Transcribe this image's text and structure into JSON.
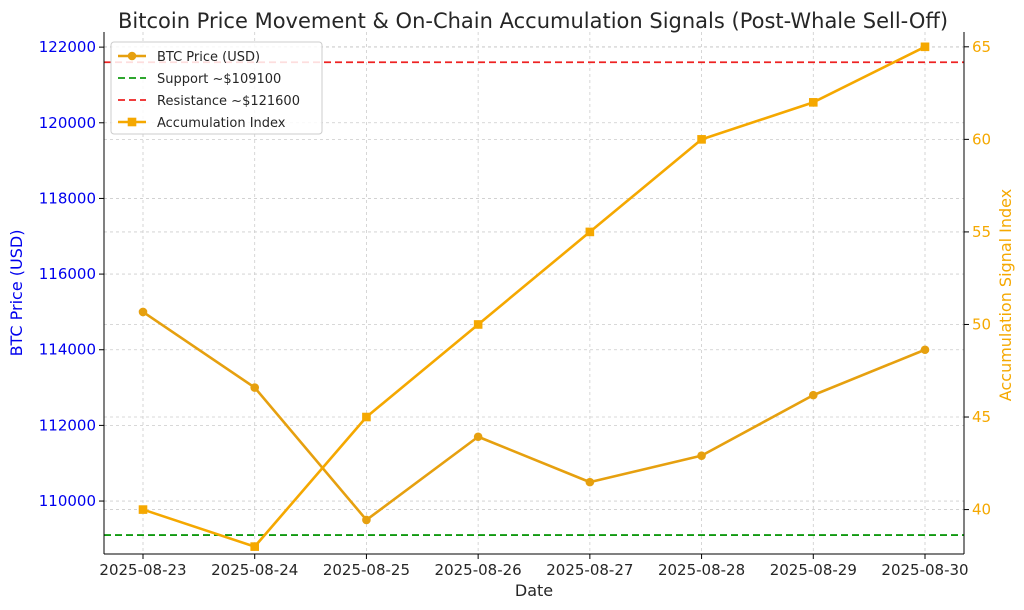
{
  "chart_data": {
    "type": "line",
    "title": "Bitcoin Price Movement & On-Chain Accumulation Signals (Post-Whale Sell-Off)",
    "xlabel": "Date",
    "ylabel_left": "BTC Price (USD)",
    "ylabel_right": "Accumulation Signal Index",
    "categories": [
      "2025-08-23",
      "2025-08-24",
      "2025-08-25",
      "2025-08-26",
      "2025-08-27",
      "2025-08-28",
      "2025-08-29",
      "2025-08-30"
    ],
    "left_axis": {
      "ylim": [
        108600,
        122400
      ],
      "ticks": [
        110000,
        112000,
        114000,
        116000,
        118000,
        120000,
        122000
      ],
      "color": "#0000ee"
    },
    "right_axis": {
      "ylim": [
        37.6,
        65.8
      ],
      "ticks": [
        40,
        45,
        50,
        55,
        60,
        65
      ],
      "color": "#f5a800"
    },
    "series": [
      {
        "name": "BTC Price (USD)",
        "axis": "left",
        "marker": "circle",
        "color": "#e6a00f",
        "values": [
          115000,
          113000,
          109500,
          111700,
          110500,
          111200,
          112800,
          114000
        ]
      },
      {
        "name": "Accumulation Index",
        "axis": "right",
        "marker": "square",
        "color": "#f5a800",
        "values": [
          40,
          38,
          45,
          50,
          55,
          60,
          62,
          65
        ]
      }
    ],
    "reference_lines": [
      {
        "name": "Support ~$109100",
        "axis": "left",
        "value": 109100,
        "color": "#119911",
        "style": "dashed"
      },
      {
        "name": "Resistance ~$121600",
        "axis": "left",
        "value": 121600,
        "color": "#ee2222",
        "style": "dashed"
      }
    ],
    "legend": {
      "placement": "top-left",
      "entries": [
        {
          "label": "BTC Price (USD)",
          "kind": "line-circle",
          "color": "#e6a00f"
        },
        {
          "label": "Support ~$109100",
          "kind": "dashed",
          "color": "#119911"
        },
        {
          "label": "Resistance ~$121600",
          "kind": "dashed",
          "color": "#ee2222"
        },
        {
          "label": "Accumulation Index",
          "kind": "line-square",
          "color": "#f5a800"
        }
      ]
    },
    "grid": true
  }
}
